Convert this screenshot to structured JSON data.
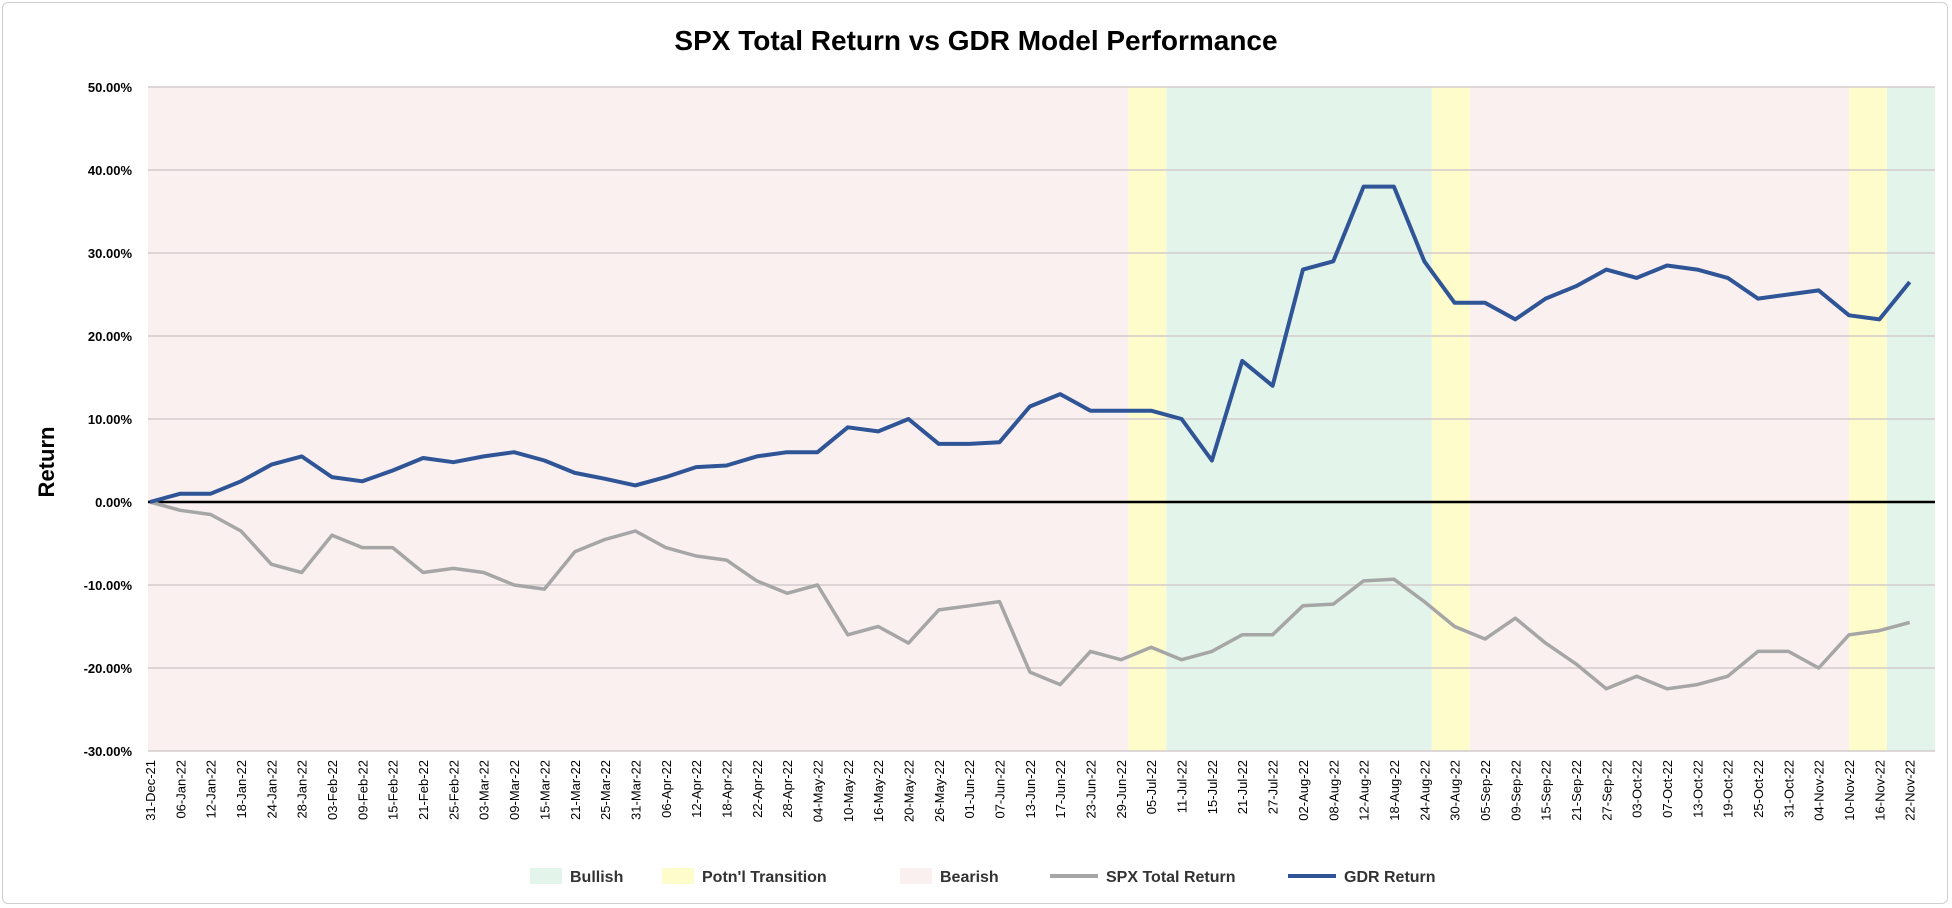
{
  "chart_data": {
    "type": "line",
    "title": "SPX Total Return vs GDR Model Performance",
    "xlabel": "",
    "ylabel": "Return",
    "ylim": [
      -30,
      50
    ],
    "yticks": [
      "50.00%",
      "40.00%",
      "30.00%",
      "20.00%",
      "10.00%",
      "0.00%",
      "-10.00%",
      "-20.00%",
      "-30.00%"
    ],
    "ytick_values": [
      50,
      40,
      30,
      20,
      10,
      0,
      -10,
      -20,
      -30
    ],
    "grid": true,
    "legend_position": "bottom",
    "x": [
      "31-Dec-21",
      "06-Jan-22",
      "12-Jan-22",
      "18-Jan-22",
      "24-Jan-22",
      "28-Jan-22",
      "03-Feb-22",
      "09-Feb-22",
      "15-Feb-22",
      "21-Feb-22",
      "25-Feb-22",
      "03-Mar-22",
      "09-Mar-22",
      "15-Mar-22",
      "21-Mar-22",
      "25-Mar-22",
      "31-Mar-22",
      "06-Apr-22",
      "12-Apr-22",
      "18-Apr-22",
      "22-Apr-22",
      "28-Apr-22",
      "04-May-22",
      "10-May-22",
      "16-May-22",
      "20-May-22",
      "26-May-22",
      "01-Jun-22",
      "07-Jun-22",
      "13-Jun-22",
      "17-Jun-22",
      "23-Jun-22",
      "29-Jun-22",
      "05-Jul-22",
      "11-Jul-22",
      "15-Jul-22",
      "21-Jul-22",
      "27-Jul-22",
      "02-Aug-22",
      "08-Aug-22",
      "12-Aug-22",
      "18-Aug-22",
      "24-Aug-22",
      "30-Aug-22",
      "05-Sep-22",
      "09-Sep-22",
      "15-Sep-22",
      "21-Sep-22",
      "27-Sep-22",
      "03-Oct-22",
      "07-Oct-22",
      "13-Oct-22",
      "19-Oct-22",
      "25-Oct-22",
      "31-Oct-22",
      "04-Nov-22",
      "10-Nov-22",
      "16-Nov-22",
      "22-Nov-22"
    ],
    "series": [
      {
        "name": "SPX Total Return",
        "color": "#A6A6A6",
        "values": [
          0,
          -1.0,
          -1.5,
          -3.5,
          -7.5,
          -8.5,
          -4.0,
          -5.5,
          -5.5,
          -8.5,
          -8.0,
          -8.5,
          -10.0,
          -10.5,
          -6.0,
          -4.5,
          -3.5,
          -5.5,
          -6.5,
          -7.0,
          -9.5,
          -11.0,
          -10.0,
          -16.0,
          -15.0,
          -17.0,
          -13.0,
          -12.5,
          -12.0,
          -20.5,
          -22.0,
          -18.0,
          -19.0,
          -17.5,
          -19.0,
          -18.0,
          -16.0,
          -16.0,
          -12.5,
          -12.3,
          -9.5,
          -9.3,
          -12.0,
          -15.0,
          -16.5,
          -14.0,
          -17.0,
          -19.5,
          -22.5,
          -21.0,
          -22.5,
          -22.0,
          -21.0,
          -18.0,
          -18.0,
          -20.0,
          -16.0,
          -15.5,
          -14.5
        ]
      },
      {
        "name": "GDR Return",
        "color": "#2F5597",
        "values": [
          0,
          1.0,
          1.0,
          2.5,
          4.5,
          5.5,
          3.0,
          2.5,
          3.8,
          5.3,
          4.8,
          5.5,
          6.0,
          5.0,
          3.5,
          2.8,
          2.0,
          3.0,
          4.2,
          4.4,
          5.5,
          6.0,
          6.0,
          9.0,
          8.5,
          10.0,
          7.0,
          7.0,
          7.2,
          11.5,
          13.0,
          11.0,
          11.0,
          11.0,
          10.0,
          5.0,
          17.0,
          14.0,
          28.0,
          29.0,
          38.0,
          38.0,
          29.0,
          24.0,
          24.0,
          22.0,
          24.5,
          26.0,
          28.0,
          27.0,
          28.5,
          28.0,
          27.0,
          24.5,
          25.0,
          25.5,
          22.5,
          22.0,
          26.5
        ]
      }
    ],
    "regimes": [
      {
        "regime": "Bearish",
        "start": "31-Dec-21",
        "end": "30-Jun-22"
      },
      {
        "regime": "Potn'l Transition",
        "start": "30-Jun-22",
        "end": "07-Jul-22"
      },
      {
        "regime": "Bullish",
        "start": "07-Jul-22",
        "end": "25-Aug-22"
      },
      {
        "regime": "Potn'l Transition",
        "start": "25-Aug-22",
        "end": "01-Sep-22"
      },
      {
        "regime": "Bearish",
        "start": "01-Sep-22",
        "end": "10-Nov-22"
      },
      {
        "regime": "Potn'l Transition",
        "start": "10-Nov-22",
        "end": "17-Nov-22"
      },
      {
        "regime": "Bullish",
        "start": "17-Nov-22",
        "end": "end"
      }
    ],
    "regime_colors": {
      "Bullish": "#E3F4EA",
      "Potn'l Transition": "#FEFCCB",
      "Bearish": "#FAF0F0"
    },
    "legend": [
      {
        "label": "Bullish",
        "kind": "area",
        "color": "#E3F4EA"
      },
      {
        "label": "Potn'l Transition",
        "kind": "area",
        "color": "#FEFCCB"
      },
      {
        "label": "Bearish",
        "kind": "area",
        "color": "#FAF0F0"
      },
      {
        "label": "SPX Total Return",
        "kind": "line",
        "color": "#A6A6A6"
      },
      {
        "label": "GDR Return",
        "kind": "line",
        "color": "#2F5597"
      }
    ]
  }
}
